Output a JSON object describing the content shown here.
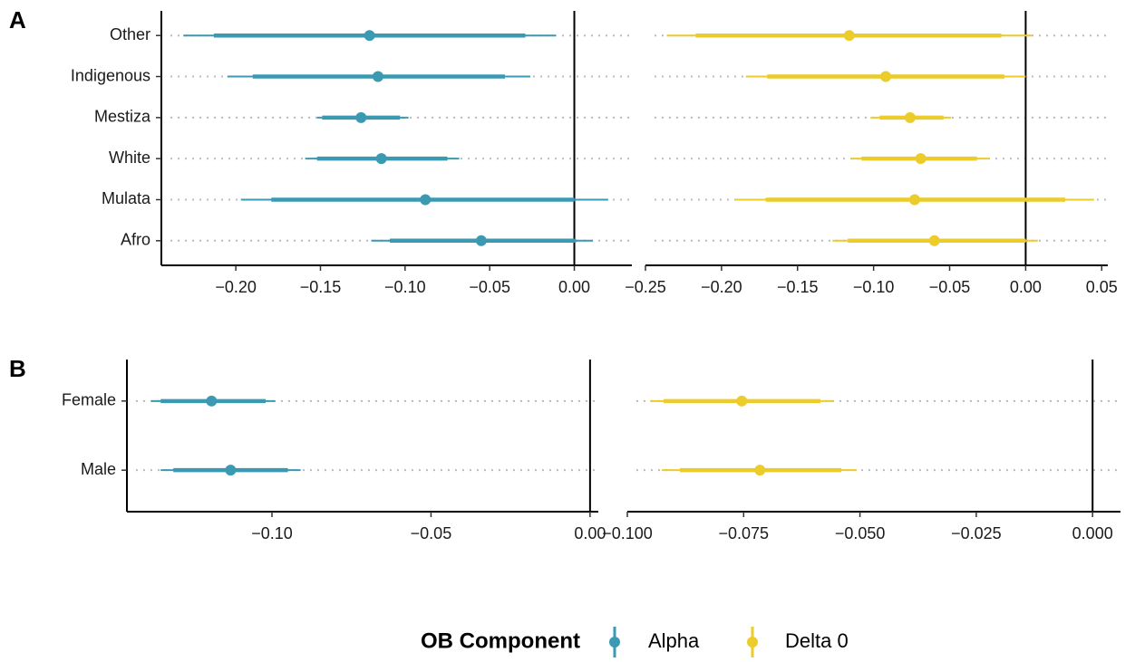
{
  "chart_data": [
    {
      "type": "forest",
      "panel": "A",
      "categories": [
        "Other",
        "Indigenous",
        "Mestiza",
        "White",
        "Mulata",
        "Afro"
      ],
      "color": "#3B9AB2",
      "values": [
        -0.121,
        -0.116,
        -0.126,
        -0.114,
        -0.088,
        -0.055
      ],
      "inner_low": [
        -0.213,
        -0.19,
        -0.149,
        -0.152,
        -0.179,
        -0.109
      ],
      "inner_high": [
        -0.029,
        -0.041,
        -0.103,
        -0.075,
        0.0,
        0.001
      ],
      "outer_low": [
        -0.231,
        -0.205,
        -0.152,
        -0.159,
        -0.197,
        -0.12
      ],
      "outer_high": [
        -0.011,
        -0.026,
        -0.098,
        -0.068,
        0.02,
        0.011
      ],
      "xlim": [
        -0.244,
        0.034
      ],
      "xticks": [
        {
          "value": -0.2,
          "label": "−0.20"
        },
        {
          "value": -0.15,
          "label": "−0.15"
        },
        {
          "value": -0.1,
          "label": "−0.10"
        },
        {
          "value": -0.05,
          "label": "−0.05"
        },
        {
          "value": 0,
          "label": "0.00"
        }
      ],
      "refline": 0,
      "grid": true
    },
    {
      "type": "forest",
      "color": "#EBCC2A",
      "values": [
        -0.116,
        -0.092,
        -0.076,
        -0.069,
        -0.073,
        -0.06
      ],
      "inner_low": [
        -0.217,
        -0.17,
        -0.096,
        -0.108,
        -0.171,
        -0.117
      ],
      "inner_high": [
        -0.016,
        -0.014,
        -0.054,
        -0.032,
        0.026,
        0.0
      ],
      "outer_low": [
        -0.236,
        -0.184,
        -0.102,
        -0.115,
        -0.191,
        -0.127
      ],
      "outer_high": [
        0.004,
        0.0,
        -0.049,
        -0.024,
        0.045,
        0.008
      ],
      "xlim": [
        -0.25,
        0.054
      ],
      "xticks": [
        {
          "value": -0.25,
          "label": "−0.25"
        },
        {
          "value": -0.2,
          "label": "−0.20"
        },
        {
          "value": -0.15,
          "label": "−0.15"
        },
        {
          "value": -0.1,
          "label": "−0.10"
        },
        {
          "value": -0.05,
          "label": "−0.05"
        },
        {
          "value": 0,
          "label": "0.00"
        },
        0.05
      ],
      "refline": 0,
      "grid": true
    },
    {
      "type": "forest",
      "panel": "B",
      "categories": [
        "Female",
        "Male"
      ],
      "color": "#3B9AB2",
      "values": [
        -0.119,
        -0.113
      ],
      "inner_low": [
        -0.135,
        -0.131
      ],
      "inner_high": [
        -0.102,
        -0.095
      ],
      "outer_low": [
        -0.138,
        -0.135
      ],
      "outer_high": [
        -0.099,
        -0.091
      ],
      "xlim": [
        -0.1456,
        0.0026
      ],
      "xticks": [
        {
          "value": -0.1,
          "label": "−0.10"
        },
        {
          "value": -0.05,
          "label": "−0.05"
        },
        {
          "value": 0,
          "label": "0.00"
        }
      ],
      "refline": 0,
      "grid": true
    },
    {
      "type": "forest",
      "color": "#EBCC2A",
      "values": [
        -0.0754,
        -0.0715
      ],
      "inner_low": [
        -0.0922,
        -0.0887
      ],
      "inner_high": [
        -0.0585,
        -0.054
      ],
      "outer_low": [
        -0.0951,
        -0.0926
      ],
      "outer_high": [
        -0.0558,
        -0.0507
      ],
      "xlim": [
        -0.1,
        0.006
      ],
      "xticks": [
        {
          "value": -0.1,
          "label": "−0.100"
        },
        {
          "value": -0.075,
          "label": "−0.075"
        },
        {
          "value": -0.05,
          "label": "−0.050"
        },
        {
          "value": -0.025,
          "label": "−0.025"
        },
        {
          "value": 0,
          "label": "0.000"
        }
      ],
      "refline": 0,
      "grid": true
    }
  ],
  "legend": {
    "title": "OB Component",
    "items": [
      {
        "name": "Alpha",
        "color": "#3B9AB2"
      },
      {
        "name": "Delta 0",
        "color": "#EBCC2A"
      }
    ]
  }
}
